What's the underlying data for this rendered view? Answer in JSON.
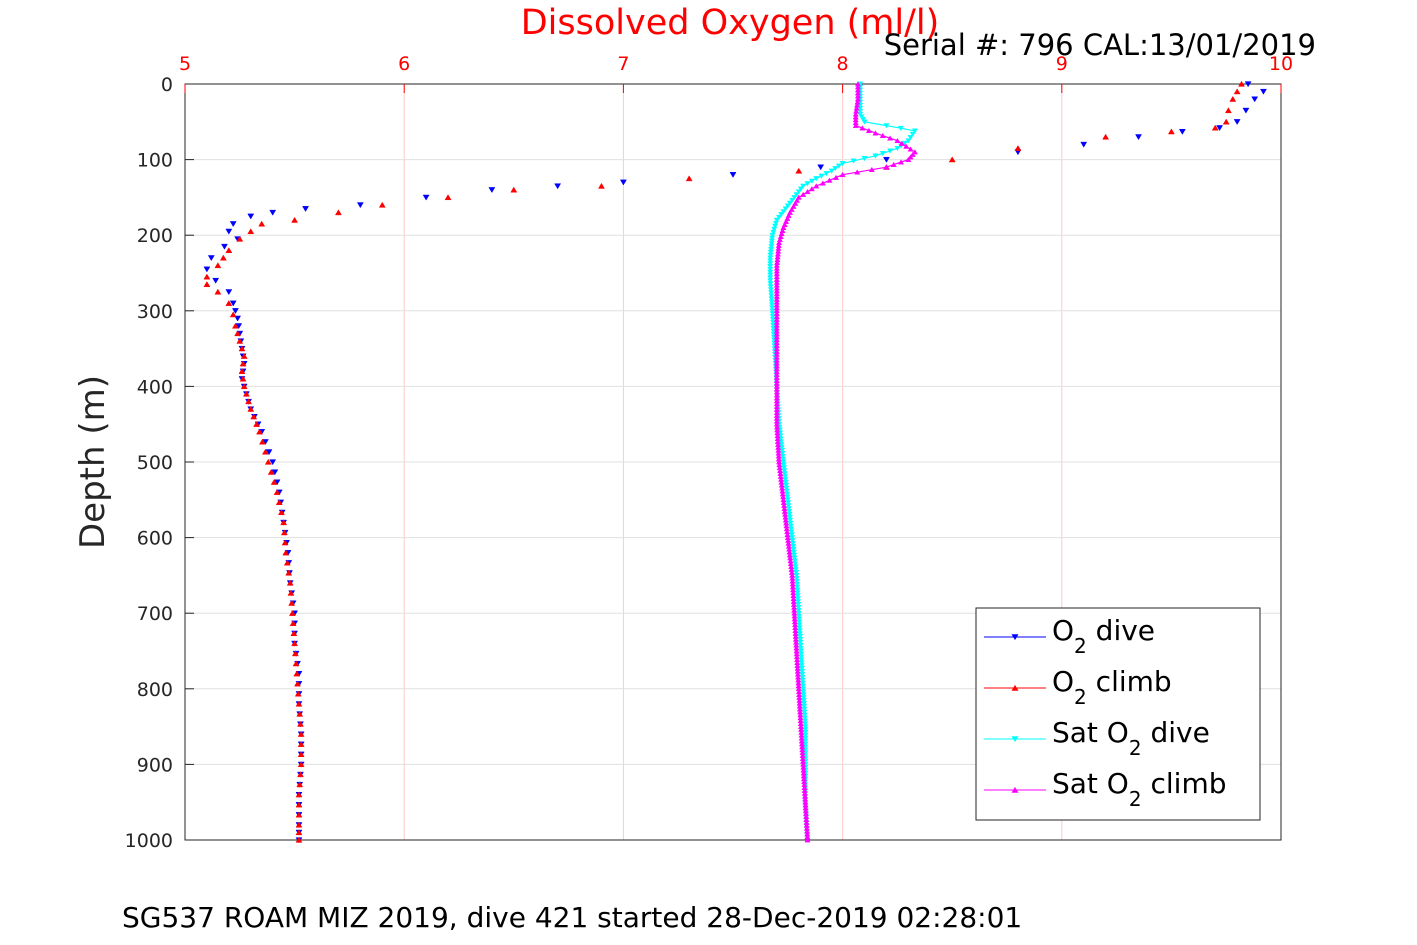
{
  "chart_data": {
    "type": "scatter",
    "title": "Dissolved Oxygen (ml/l)",
    "serial_label": "Serial #: 796  CAL:13/01/2019",
    "ylabel": "Depth (m)",
    "footer": "SG537 ROAM MIZ 2019, dive 421 started 28-Dec-2019 02:28:01",
    "xlim": [
      5,
      10
    ],
    "ylim": [
      0,
      1000
    ],
    "y_reversed": true,
    "x_axis_position": "top",
    "x_ticks": [
      5,
      6,
      7,
      8,
      9,
      10
    ],
    "y_ticks": [
      0,
      100,
      200,
      300,
      400,
      500,
      600,
      700,
      800,
      900,
      1000
    ],
    "grid": true,
    "legend_position": "bottom-right",
    "series": [
      {
        "key": "o2_dive",
        "legend_main": "O",
        "legend_sub": "2",
        "legend_rest": " dive",
        "color": "#0000ff",
        "marker": "triangle-down",
        "points": [
          [
            9.85,
            0
          ],
          [
            9.92,
            10
          ],
          [
            9.88,
            20
          ],
          [
            9.84,
            35
          ],
          [
            9.8,
            50
          ],
          [
            9.72,
            58
          ],
          [
            9.55,
            63
          ],
          [
            9.35,
            70
          ],
          [
            9.1,
            80
          ],
          [
            8.8,
            90
          ],
          [
            8.2,
            100
          ],
          [
            7.9,
            110
          ],
          [
            7.5,
            120
          ],
          [
            7.0,
            130
          ],
          [
            6.7,
            135
          ],
          [
            6.4,
            140
          ],
          [
            6.1,
            150
          ],
          [
            5.8,
            160
          ],
          [
            5.55,
            165
          ],
          [
            5.4,
            170
          ],
          [
            5.3,
            175
          ],
          [
            5.22,
            185
          ],
          [
            5.2,
            195
          ],
          [
            5.24,
            205
          ],
          [
            5.18,
            215
          ],
          [
            5.12,
            230
          ],
          [
            5.1,
            245
          ],
          [
            5.14,
            260
          ],
          [
            5.2,
            275
          ],
          [
            5.22,
            290
          ],
          [
            5.24,
            310
          ],
          [
            5.25,
            330
          ],
          [
            5.26,
            350
          ],
          [
            5.27,
            370
          ],
          [
            5.26,
            390
          ],
          [
            5.28,
            410
          ],
          [
            5.3,
            430
          ],
          [
            5.35,
            460
          ],
          [
            5.4,
            500
          ],
          [
            5.43,
            540
          ],
          [
            5.45,
            580
          ],
          [
            5.47,
            620
          ],
          [
            5.48,
            660
          ],
          [
            5.5,
            700
          ],
          [
            5.5,
            740
          ],
          [
            5.52,
            780
          ],
          [
            5.52,
            820
          ],
          [
            5.53,
            860
          ],
          [
            5.53,
            900
          ],
          [
            5.52,
            940
          ],
          [
            5.52,
            980
          ],
          [
            5.52,
            1000
          ]
        ]
      },
      {
        "key": "o2_climb",
        "legend_main": "O",
        "legend_sub": "2",
        "legend_rest": " climb",
        "color": "#ff0000",
        "marker": "triangle-up",
        "points": [
          [
            9.82,
            0
          ],
          [
            9.8,
            10
          ],
          [
            9.78,
            20
          ],
          [
            9.76,
            35
          ],
          [
            9.75,
            50
          ],
          [
            9.7,
            58
          ],
          [
            9.5,
            63
          ],
          [
            9.2,
            70
          ],
          [
            8.8,
            85
          ],
          [
            8.5,
            100
          ],
          [
            8.2,
            110
          ],
          [
            7.8,
            115
          ],
          [
            7.3,
            125
          ],
          [
            6.9,
            135
          ],
          [
            6.5,
            140
          ],
          [
            6.2,
            150
          ],
          [
            5.9,
            160
          ],
          [
            5.7,
            170
          ],
          [
            5.5,
            180
          ],
          [
            5.35,
            185
          ],
          [
            5.3,
            195
          ],
          [
            5.25,
            205
          ],
          [
            5.2,
            220
          ],
          [
            5.15,
            240
          ],
          [
            5.1,
            255
          ],
          [
            5.1,
            265
          ],
          [
            5.15,
            275
          ],
          [
            5.2,
            290
          ],
          [
            5.22,
            305
          ],
          [
            5.23,
            320
          ],
          [
            5.25,
            340
          ],
          [
            5.27,
            360
          ],
          [
            5.26,
            380
          ],
          [
            5.27,
            400
          ],
          [
            5.3,
            430
          ],
          [
            5.34,
            460
          ],
          [
            5.38,
            500
          ],
          [
            5.42,
            540
          ],
          [
            5.45,
            580
          ],
          [
            5.46,
            620
          ],
          [
            5.48,
            660
          ],
          [
            5.49,
            700
          ],
          [
            5.5,
            740
          ],
          [
            5.51,
            780
          ],
          [
            5.52,
            820
          ],
          [
            5.53,
            860
          ],
          [
            5.53,
            900
          ],
          [
            5.52,
            940
          ],
          [
            5.52,
            980
          ],
          [
            5.52,
            1000
          ]
        ]
      },
      {
        "key": "sat_dive",
        "legend_main": "Sat O",
        "legend_sub": "2",
        "legend_rest": " dive",
        "color": "#00ffff",
        "marker": "triangle-down",
        "points": [
          [
            8.08,
            0
          ],
          [
            8.08,
            20
          ],
          [
            8.08,
            40
          ],
          [
            8.1,
            50
          ],
          [
            8.2,
            55
          ],
          [
            8.33,
            62
          ],
          [
            8.3,
            75
          ],
          [
            8.25,
            85
          ],
          [
            8.15,
            95
          ],
          [
            8.0,
            105
          ],
          [
            7.95,
            115
          ],
          [
            7.88,
            125
          ],
          [
            7.82,
            135
          ],
          [
            7.78,
            150
          ],
          [
            7.74,
            165
          ],
          [
            7.7,
            180
          ],
          [
            7.68,
            200
          ],
          [
            7.67,
            230
          ],
          [
            7.67,
            260
          ],
          [
            7.68,
            300
          ],
          [
            7.69,
            350
          ],
          [
            7.7,
            400
          ],
          [
            7.71,
            450
          ],
          [
            7.73,
            500
          ],
          [
            7.75,
            550
          ],
          [
            7.77,
            600
          ],
          [
            7.79,
            650
          ],
          [
            7.8,
            700
          ],
          [
            7.81,
            750
          ],
          [
            7.82,
            800
          ],
          [
            7.83,
            850
          ],
          [
            7.83,
            900
          ],
          [
            7.83,
            950
          ],
          [
            7.84,
            1000
          ]
        ]
      },
      {
        "key": "sat_climb",
        "legend_main": "Sat O",
        "legend_sub": "2",
        "legend_rest": " climb",
        "color": "#ff00ff",
        "marker": "triangle-up",
        "points": [
          [
            8.07,
            0
          ],
          [
            8.07,
            20
          ],
          [
            8.06,
            40
          ],
          [
            8.06,
            55
          ],
          [
            8.15,
            65
          ],
          [
            8.25,
            75
          ],
          [
            8.33,
            90
          ],
          [
            8.3,
            100
          ],
          [
            8.2,
            110
          ],
          [
            8.0,
            120
          ],
          [
            7.88,
            135
          ],
          [
            7.8,
            150
          ],
          [
            7.76,
            170
          ],
          [
            7.73,
            190
          ],
          [
            7.71,
            210
          ],
          [
            7.7,
            240
          ],
          [
            7.7,
            270
          ],
          [
            7.7,
            300
          ],
          [
            7.7,
            350
          ],
          [
            7.7,
            400
          ],
          [
            7.7,
            450
          ],
          [
            7.71,
            500
          ],
          [
            7.73,
            550
          ],
          [
            7.75,
            600
          ],
          [
            7.77,
            650
          ],
          [
            7.78,
            700
          ],
          [
            7.79,
            750
          ],
          [
            7.8,
            800
          ],
          [
            7.81,
            850
          ],
          [
            7.82,
            900
          ],
          [
            7.83,
            950
          ],
          [
            7.84,
            1000
          ]
        ]
      }
    ]
  }
}
